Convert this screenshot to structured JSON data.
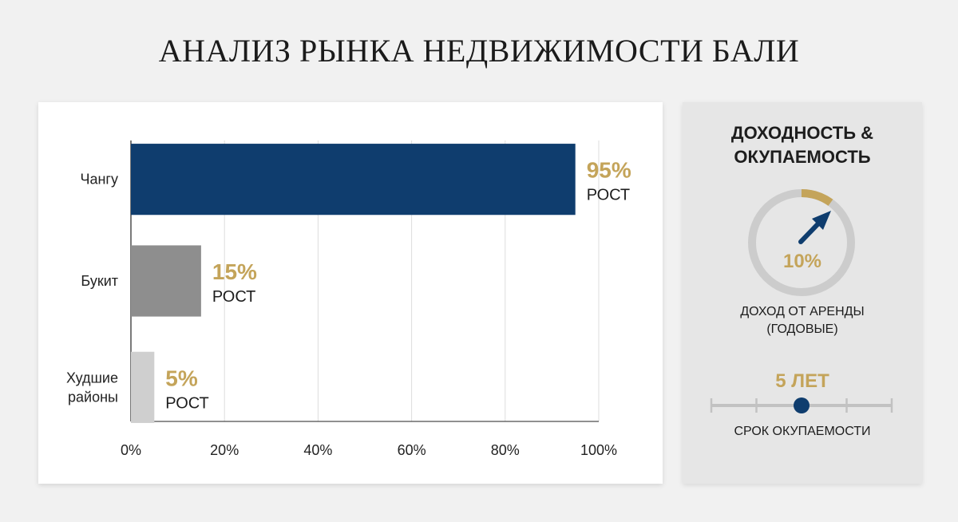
{
  "title": "АНАЛИЗ РЫНКА НЕДВИЖИМОСТИ БАЛИ",
  "chart_data": {
    "type": "bar",
    "orientation": "horizontal",
    "categories": [
      "Чангу",
      "Букит",
      "Худшие районы"
    ],
    "category_lines": [
      [
        "Чангу"
      ],
      [
        "Букит"
      ],
      [
        "Худшие",
        "районы"
      ]
    ],
    "values": [
      95,
      15,
      5
    ],
    "value_labels": [
      "95%",
      "15%",
      "5%"
    ],
    "value_sublabel": "РОСТ",
    "bar_colors": [
      "#0f3d6e",
      "#8e8e8e",
      "#cfcfcf"
    ],
    "xlim": [
      0,
      100
    ],
    "xticks": [
      0,
      20,
      40,
      60,
      80,
      100
    ],
    "xtick_labels": [
      "0%",
      "20%",
      "40%",
      "60%",
      "80%",
      "100%"
    ],
    "grid": "vertical",
    "label_color": "#c4a45a"
  },
  "side_panel": {
    "title_lines": [
      "ДОХОДНОСТЬ &",
      "ОКУПАЕМОСТЬ"
    ],
    "rental_yield": {
      "value": 10,
      "label": "10%",
      "caption_lines": [
        "ДОХОД ОТ АРЕНДЫ",
        "(ГОДОВЫЕ)"
      ]
    },
    "payback": {
      "label": "5 ЛЕТ",
      "caption": "СРОК ОКУПАЕМОСТИ",
      "tick_count": 5,
      "marker_position": 0.5
    }
  },
  "colors": {
    "accent_gold": "#c4a45a",
    "navy": "#0f3d6e",
    "ring_gray": "#cccccc"
  }
}
